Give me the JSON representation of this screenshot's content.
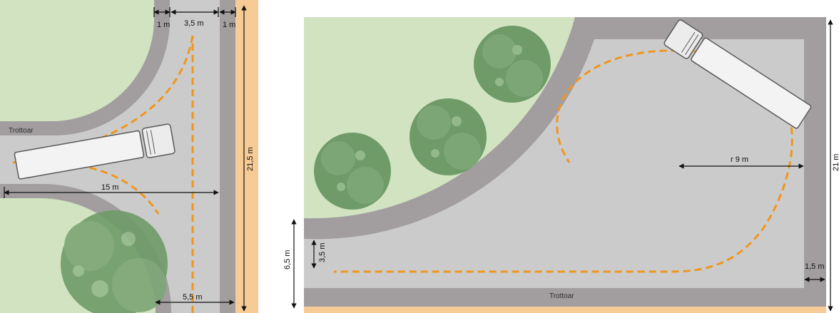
{
  "colors": {
    "grass": "#d2e3c2",
    "road": "#cbcbcb",
    "sidewalk": "#a29e9f",
    "curb": "#8a8687",
    "tan": "#f6cb95",
    "path": "#f0961e",
    "tree": "#6f9b68",
    "tree_light": "#93b98a"
  },
  "left_diagram": {
    "sidewalk_label": "Trottoar",
    "dim_curb_left": "1 m",
    "dim_lane": "3,5 m",
    "dim_curb_right": "1 m",
    "dim_width": "15 m",
    "dim_height": "21,5 m",
    "dim_bottom": "5,5 m"
  },
  "right_diagram": {
    "sidewalk_label": "Trottoar",
    "dim_radius": "r 9 m",
    "dim_height": "21 m",
    "dim_outer": "6,5 m",
    "dim_inner": "3,5 m",
    "dim_curb": "1,5 m"
  }
}
